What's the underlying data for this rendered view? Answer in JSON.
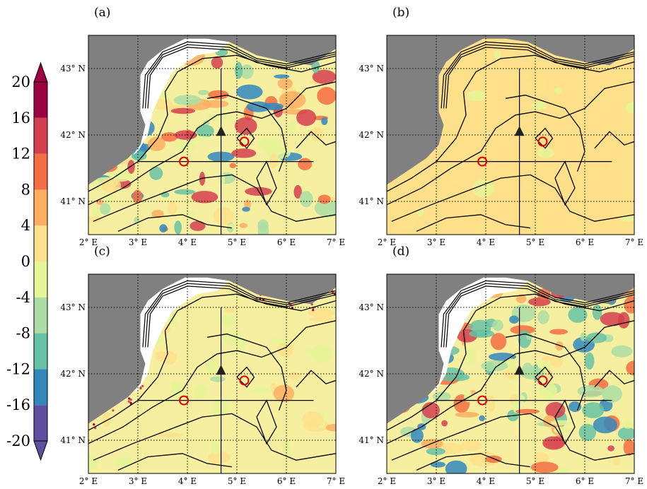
{
  "colorbar": {
    "ticks": [
      "20",
      "16",
      "12",
      "8",
      "4",
      "0",
      "-4",
      "-8",
      "-12",
      "-16",
      "-20"
    ],
    "bins": [
      {
        "from": -20,
        "to": -16,
        "color": "#5e4fa2"
      },
      {
        "from": -16,
        "to": -12,
        "color": "#3288bd"
      },
      {
        "from": -12,
        "to": -8,
        "color": "#66c2a5"
      },
      {
        "from": -8,
        "to": -4,
        "color": "#abdda4"
      },
      {
        "from": -4,
        "to": 0,
        "color": "#e6f598"
      },
      {
        "from": 0,
        "to": 4,
        "color": "#fee08b"
      },
      {
        "from": 4,
        "to": 8,
        "color": "#fdae61"
      },
      {
        "from": 8,
        "to": 12,
        "color": "#f46d43"
      },
      {
        "from": 12,
        "to": 16,
        "color": "#d53e4f"
      },
      {
        "from": 16,
        "to": 20,
        "color": "#9e0142"
      }
    ],
    "extend": "both"
  },
  "map": {
    "lon_labels": [
      "2° E",
      "3° E",
      "4° E",
      "5° E",
      "6° E",
      "7° E"
    ],
    "lat_labels": [
      "41° N",
      "42° N",
      "43° N"
    ],
    "lon_range": [
      2,
      7
    ],
    "lat_range": [
      40.5,
      43.5
    ],
    "land_color": "#808080",
    "marker_circles": [
      {
        "lon": 3.93,
        "lat": 41.6
      },
      {
        "lon": 5.15,
        "lat": 41.9
      }
    ],
    "marker_triangle": {
      "lon": 4.68,
      "lat": 42.05
    },
    "section_lines": [
      {
        "lon": [
          3.0,
          6.55
        ],
        "lat": [
          41.6,
          41.6
        ]
      },
      {
        "lon": [
          4.68,
          4.68
        ],
        "lat": [
          40.5,
          43.0
        ]
      }
    ]
  },
  "panels": [
    {
      "label": "(a)",
      "intensity": "high"
    },
    {
      "label": "(b)",
      "intensity": "low"
    },
    {
      "label": "(c)",
      "intensity": "coastal"
    },
    {
      "label": "(d)",
      "intensity": "high"
    }
  ]
}
